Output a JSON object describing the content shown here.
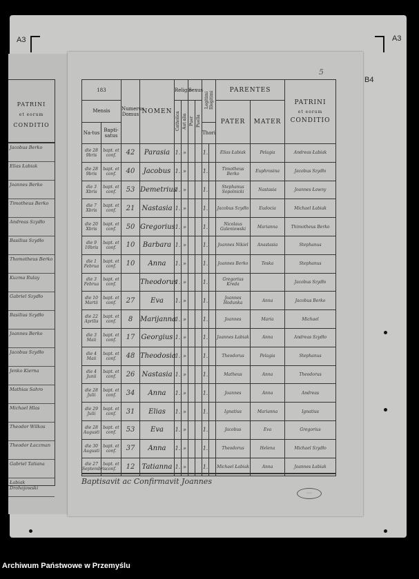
{
  "marks": {
    "top_left": "A3",
    "top_right": "A3",
    "right": "B4",
    "page_number": "5"
  },
  "left_page": {
    "header": [
      "PATRINI",
      "et eorum",
      "CONDITIO"
    ],
    "entries": [
      "Jacobus Berko",
      "Elias Łabiak",
      "Joannes Berko",
      "Timotheus Berko",
      "Andreas Szydło",
      "Basilius Szydło",
      "Thomotheus Berko",
      "Kuzma Rulay",
      "Gabriel Szydło",
      "Basilius Szydło",
      "Joannes Berko",
      "Jacobus Szydło",
      "Jenko Kierna",
      "Mathias Sahro",
      "Michael Hlas",
      "Theodor Wilkos",
      "Theodor Łaczman",
      "Gabriel Tatiana",
      "Łabiak Drohojowski"
    ]
  },
  "header": {
    "year": "183",
    "mensis": "Mensis",
    "natus": "Na-tus",
    "baptisatus": "Bapti-satus",
    "domus": "Numerus Domus",
    "nomen": "NOMEN",
    "religio": "Religio",
    "catholica": "Catholica",
    "aut_alia": "Aut alia",
    "sexus": "Sexus",
    "puer": "Puer",
    "puella": "Puella",
    "legitimi": "Legitimi",
    "illegitimi": "Illegitimi",
    "thori": "Thori",
    "parentes": "PARENTES",
    "pater": "PATER",
    "mater": "MATER",
    "patrini": [
      "PATRINI",
      "et eorum",
      "CONDITIO"
    ]
  },
  "rows": [
    {
      "natus": "die 28 9bris",
      "bapt": "bapt. et conf.",
      "domus": "42",
      "nomen": "Parasia",
      "pater": "Elias Łabiak",
      "mater": "Pelagia",
      "patrini": "Andreas Łabiak"
    },
    {
      "natus": "die 28 9bris",
      "bapt": "bapt. et conf.",
      "domus": "40",
      "nomen": "Jacobus",
      "pater": "Timotheus Berko",
      "mater": "Euphrosina",
      "patrini": "Jacobus Szydło"
    },
    {
      "natus": "die 3 Xbris",
      "bapt": "bapt. et conf.",
      "domus": "53",
      "nomen": "Demetrius",
      "pater": "Stephanus Sopolnicki",
      "mater": "Nastasia",
      "patrini": "Joannes Ławny"
    },
    {
      "natus": "die 7 Xbris",
      "bapt": "bapt. et conf.",
      "domus": "21",
      "nomen": "Nastasia",
      "pater": "Jacobus Szydło",
      "mater": "Eudocia",
      "patrini": "Michael Łabiak"
    },
    {
      "natus": "die 20 Xbris",
      "bapt": "bapt. et conf.",
      "domus": "50",
      "nomen": "Gregorius",
      "pater": "Nicolaus Galeniowski",
      "mater": "Marianna",
      "patrini": "Thimotheus Berko"
    },
    {
      "natus": "die 9 10bris",
      "bapt": "bapt. et conf.",
      "domus": "10",
      "nomen": "Barbara",
      "pater": "Joannes Nikiel",
      "mater": "Anastasia",
      "patrini": "Stephanus"
    },
    {
      "natus": "die 1 Februa",
      "bapt": "bapt. et conf.",
      "domus": "10",
      "nomen": "Anna",
      "pater": "Joannes Berko",
      "mater": "Teska",
      "patrini": "Stephanus"
    },
    {
      "natus": "die 3 Februa",
      "bapt": "bapt. et conf.",
      "domus": "",
      "nomen": "Theodorus",
      "pater": "Gregorius Kreda",
      "mater": "",
      "patrini": "Jacobus Szydło"
    },
    {
      "natus": "die 10 Martii",
      "bapt": "bapt. et conf.",
      "domus": "27",
      "nomen": "Eva",
      "pater": "Joannes Hodunka",
      "mater": "Anna",
      "patrini": "Jacobus Berko"
    },
    {
      "natus": "die 22 Aprilis",
      "bapt": "bapt. et conf.",
      "domus": "8",
      "nomen": "Marijanna",
      "pater": "Joannes",
      "mater": "Maria",
      "patrini": "Michael"
    },
    {
      "natus": "die 3 Maii",
      "bapt": "bapt. et conf.",
      "domus": "17",
      "nomen": "Georgius",
      "pater": "Joannes Łabiak",
      "mater": "Anna",
      "patrini": "Andreas Szydło"
    },
    {
      "natus": "die 4 Maii",
      "bapt": "bapt. et conf.",
      "domus": "48",
      "nomen": "Theodosia",
      "pater": "Theodorus",
      "mater": "Pelagia",
      "patrini": "Stephanus"
    },
    {
      "natus": "die 4 Junii",
      "bapt": "bapt. et conf.",
      "domus": "26",
      "nomen": "Nastasia",
      "pater": "Matheus",
      "mater": "Anna",
      "patrini": "Theodorus"
    },
    {
      "natus": "die 28 Julii",
      "bapt": "bapt. et conf.",
      "domus": "34",
      "nomen": "Anna",
      "pater": "Joannes",
      "mater": "Anna",
      "patrini": "Andreas"
    },
    {
      "natus": "die 29 Julii",
      "bapt": "bapt. et conf.",
      "domus": "31",
      "nomen": "Elias",
      "pater": "Ignatius",
      "mater": "Marianna",
      "patrini": "Ignatius"
    },
    {
      "natus": "die 28 Augusti",
      "bapt": "bapt. et conf.",
      "domus": "53",
      "nomen": "Eva",
      "pater": "Jacobus",
      "mater": "Eva",
      "patrini": "Gregorius"
    },
    {
      "natus": "die 30 Augusti",
      "bapt": "bapt. et conf.",
      "domus": "37",
      "nomen": "Anna",
      "pater": "Theodorus",
      "mater": "Helena",
      "patrini": "Michael Szydło"
    },
    {
      "natus": "die 27 Septembris",
      "bapt": "bapt. et conf.",
      "domus": "12",
      "nomen": "Tatianna",
      "pater": "Michael Łabiak",
      "mater": "Anna",
      "patrini": "Joannes Łabiak"
    }
  ],
  "marks_in_row": {
    "catholica": "1.",
    "aut_alia": "»"
  },
  "footer": {
    "text": "Baptisavit ac Confirmavit Joannes"
  },
  "caption": "Archiwum Państwowe w Przemyślu"
}
